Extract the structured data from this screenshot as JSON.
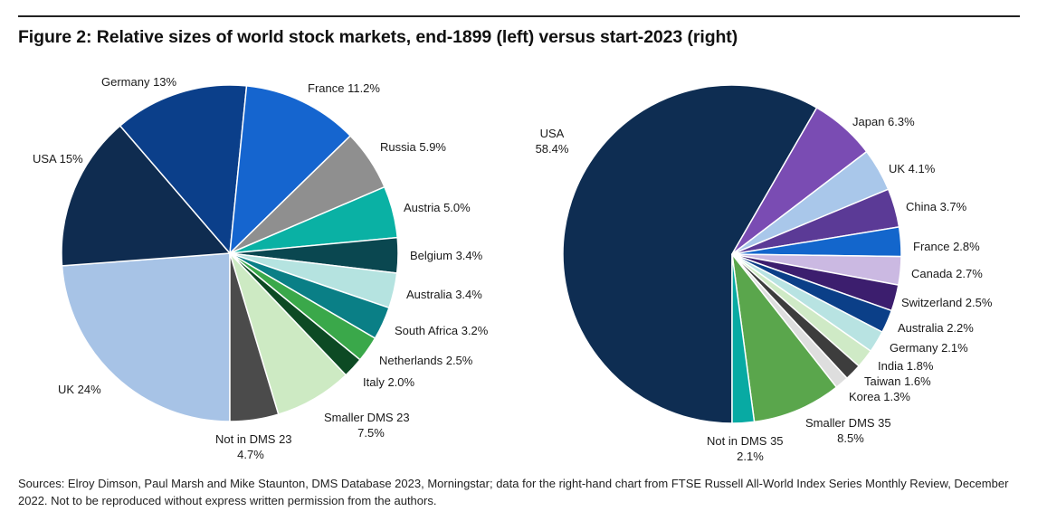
{
  "figure": {
    "title": "Figure 2: Relative sizes of world stock markets, end-1899 (left) versus start-2023 (right)",
    "sources": "Sources: Elroy Dimson, Paul Marsh and Mike Staunton, DMS Database 2023, Morningstar; data for the right-hand chart from FTSE Russell All-World Index Series Monthly Review, December 2022. Not to be reproduced without express written permission from the authors."
  },
  "chart_data": [
    {
      "type": "pie",
      "title": "",
      "slices": [
        {
          "label": "UK",
          "value": 24,
          "text": [
            "UK 24%"
          ],
          "color": "#a7c3e6"
        },
        {
          "label": "USA",
          "value": 15,
          "text": [
            "USA 15%"
          ],
          "color": "#0f2c50"
        },
        {
          "label": "Germany",
          "value": 13,
          "text": [
            "Germany 13%"
          ],
          "color": "#0b3f8a"
        },
        {
          "label": "France",
          "value": 11.2,
          "text": [
            "France 11.2%"
          ],
          "color": "#1565cf"
        },
        {
          "label": "Russia",
          "value": 5.9,
          "text": [
            "Russia 5.9%"
          ],
          "color": "#8f8f8f"
        },
        {
          "label": "Austria",
          "value": 5.0,
          "text": [
            "Austria 5.0%"
          ],
          "color": "#0ab1a4"
        },
        {
          "label": "Belgium",
          "value": 3.4,
          "text": [
            "Belgium 3.4%"
          ],
          "color": "#0a4750"
        },
        {
          "label": "Australia",
          "value": 3.4,
          "text": [
            "Australia 3.4%"
          ],
          "color": "#b5e3e0"
        },
        {
          "label": "South Africa",
          "value": 3.2,
          "text": [
            "South Africa 3.2%"
          ],
          "color": "#0a7f86"
        },
        {
          "label": "Netherlands",
          "value": 2.5,
          "text": [
            "Netherlands 2.5%"
          ],
          "color": "#3aa84a"
        },
        {
          "label": "Italy",
          "value": 2.0,
          "text": [
            "Italy 2.0%"
          ],
          "color": "#0d4a24"
        },
        {
          "label": "Smaller DMS 23",
          "value": 7.5,
          "text": [
            "Smaller DMS 23",
            "7.5%"
          ],
          "color": "#cdeac3"
        },
        {
          "label": "Not in DMS 23",
          "value": 4.7,
          "text": [
            "Not in DMS 23",
            "4.7%"
          ],
          "color": "#4b4b4b"
        }
      ]
    },
    {
      "type": "pie",
      "title": "",
      "slices": [
        {
          "label": "USA",
          "value": 58.4,
          "text": [
            "USA",
            "58.4%"
          ],
          "color": "#0e2d52"
        },
        {
          "label": "Japan",
          "value": 6.3,
          "text": [
            "Japan 6.3%"
          ],
          "color": "#7a4cb3"
        },
        {
          "label": "UK",
          "value": 4.1,
          "text": [
            "UK 4.1%"
          ],
          "color": "#a9c7ea"
        },
        {
          "label": "China",
          "value": 3.7,
          "text": [
            "China 3.7%"
          ],
          "color": "#5b3a96"
        },
        {
          "label": "France",
          "value": 2.8,
          "text": [
            "France 2.8%"
          ],
          "color": "#1366cc"
        },
        {
          "label": "Canada",
          "value": 2.7,
          "text": [
            "Canada 2.7%"
          ],
          "color": "#cbb9e2"
        },
        {
          "label": "Switzerland",
          "value": 2.5,
          "text": [
            "Switzerland 2.5%"
          ],
          "color": "#3c1e6e"
        },
        {
          "label": "Australia",
          "value": 2.2,
          "text": [
            "Australia 2.2%"
          ],
          "color": "#0b3f88"
        },
        {
          "label": "Germany",
          "value": 2.1,
          "text": [
            "Germany 2.1%"
          ],
          "color": "#b8e3e2"
        },
        {
          "label": "India",
          "value": 1.8,
          "text": [
            "India 1.8%"
          ],
          "color": "#cfeac6"
        },
        {
          "label": "Taiwan",
          "value": 1.6,
          "text": [
            "Taiwan 1.6%"
          ],
          "color": "#3d3d3d"
        },
        {
          "label": "Korea",
          "value": 1.3,
          "text": [
            "Korea 1.3%"
          ],
          "color": "#dedede"
        },
        {
          "label": "Smaller DMS 35",
          "value": 8.5,
          "text": [
            "Smaller DMS 35",
            "8.5%"
          ],
          "color": "#5aa64c"
        },
        {
          "label": "Not in DMS 35",
          "value": 2.1,
          "text": [
            "Not in DMS 35",
            "2.1%"
          ],
          "color": "#08aaa3"
        }
      ]
    }
  ]
}
